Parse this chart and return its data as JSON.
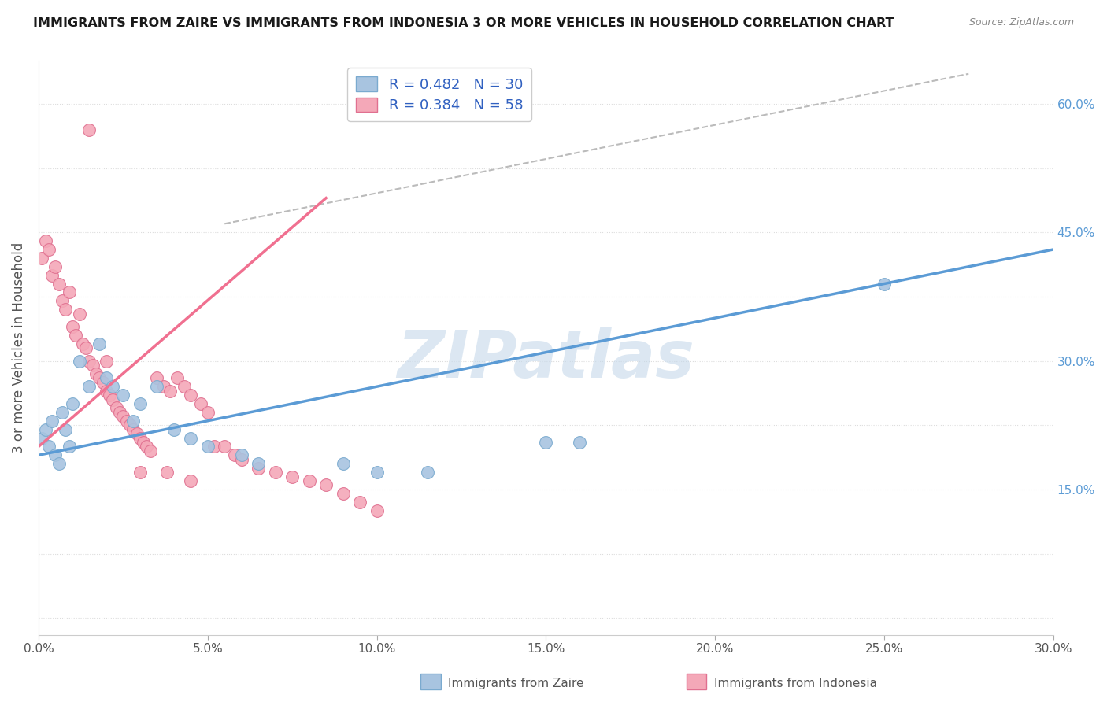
{
  "title": "IMMIGRANTS FROM ZAIRE VS IMMIGRANTS FROM INDONESIA 3 OR MORE VEHICLES IN HOUSEHOLD CORRELATION CHART",
  "source": "Source: ZipAtlas.com",
  "ylabel": "3 or more Vehicles in Household",
  "xlim": [
    0.0,
    0.3
  ],
  "ylim": [
    -0.02,
    0.65
  ],
  "xtick_values": [
    0.0,
    0.05,
    0.1,
    0.15,
    0.2,
    0.25,
    0.3
  ],
  "xtick_labels": [
    "0.0%",
    "5.0%",
    "10.0%",
    "15.0%",
    "20.0%",
    "25.0%",
    "30.0%"
  ],
  "ytick_vals": [
    0.0,
    0.075,
    0.15,
    0.225,
    0.3,
    0.375,
    0.45,
    0.525,
    0.6
  ],
  "ytick_labels": [
    "",
    "",
    "15.0%",
    "",
    "30.0%",
    "",
    "45.0%",
    "",
    "60.0%"
  ],
  "zaire_color": "#a8c4e0",
  "zaire_edge_color": "#7aaacf",
  "indonesia_color": "#f4a8b8",
  "indonesia_edge_color": "#e07090",
  "zaire_line_color": "#5b9bd5",
  "indonesia_line_color": "#f07090",
  "ref_line_color": "#bbbbbb",
  "zaire_R": 0.482,
  "zaire_N": 30,
  "indonesia_R": 0.384,
  "indonesia_N": 58,
  "legend_label_zaire": "Immigrants from Zaire",
  "legend_label_indonesia": "Immigrants from Indonesia",
  "zaire_scatter_x": [
    0.001,
    0.002,
    0.003,
    0.004,
    0.005,
    0.006,
    0.007,
    0.008,
    0.009,
    0.01,
    0.012,
    0.015,
    0.018,
    0.02,
    0.022,
    0.025,
    0.028,
    0.03,
    0.035,
    0.04,
    0.045,
    0.05,
    0.06,
    0.065,
    0.09,
    0.1,
    0.115,
    0.15,
    0.16,
    0.25
  ],
  "zaire_scatter_y": [
    0.21,
    0.22,
    0.2,
    0.23,
    0.19,
    0.18,
    0.24,
    0.22,
    0.2,
    0.25,
    0.3,
    0.27,
    0.32,
    0.28,
    0.27,
    0.26,
    0.23,
    0.25,
    0.27,
    0.22,
    0.21,
    0.2,
    0.19,
    0.18,
    0.18,
    0.17,
    0.17,
    0.205,
    0.205,
    0.39
  ],
  "indonesia_scatter_x": [
    0.001,
    0.002,
    0.003,
    0.004,
    0.005,
    0.006,
    0.007,
    0.008,
    0.009,
    0.01,
    0.011,
    0.012,
    0.013,
    0.014,
    0.015,
    0.016,
    0.017,
    0.018,
    0.019,
    0.02,
    0.021,
    0.022,
    0.023,
    0.024,
    0.025,
    0.026,
    0.027,
    0.028,
    0.029,
    0.03,
    0.031,
    0.032,
    0.033,
    0.035,
    0.037,
    0.039,
    0.041,
    0.043,
    0.045,
    0.048,
    0.05,
    0.052,
    0.055,
    0.058,
    0.06,
    0.065,
    0.07,
    0.075,
    0.08,
    0.085,
    0.09,
    0.095,
    0.1,
    0.02,
    0.03,
    0.038,
    0.045,
    0.015
  ],
  "indonesia_scatter_y": [
    0.42,
    0.44,
    0.43,
    0.4,
    0.41,
    0.39,
    0.37,
    0.36,
    0.38,
    0.34,
    0.33,
    0.355,
    0.32,
    0.315,
    0.3,
    0.295,
    0.285,
    0.28,
    0.275,
    0.265,
    0.26,
    0.255,
    0.245,
    0.24,
    0.235,
    0.23,
    0.225,
    0.22,
    0.215,
    0.21,
    0.205,
    0.2,
    0.195,
    0.28,
    0.27,
    0.265,
    0.28,
    0.27,
    0.26,
    0.25,
    0.24,
    0.2,
    0.2,
    0.19,
    0.185,
    0.175,
    0.17,
    0.165,
    0.16,
    0.155,
    0.145,
    0.135,
    0.125,
    0.3,
    0.17,
    0.17,
    0.16,
    0.57
  ],
  "zaire_line_x": [
    0.0,
    0.3
  ],
  "zaire_line_y": [
    0.19,
    0.43
  ],
  "indonesia_line_x": [
    0.0,
    0.085
  ],
  "indonesia_line_y": [
    0.2,
    0.49
  ],
  "ref_line_x": [
    0.055,
    0.275
  ],
  "ref_line_y": [
    0.46,
    0.635
  ],
  "watermark": "ZIPatlas",
  "watermark_color": "#c5d8ea",
  "background_color": "#ffffff",
  "grid_color": "#dddddd",
  "title_fontsize": 11.5,
  "source_fontsize": 9,
  "legend_fontsize": 13,
  "ylabel_fontsize": 12,
  "tick_fontsize": 11
}
